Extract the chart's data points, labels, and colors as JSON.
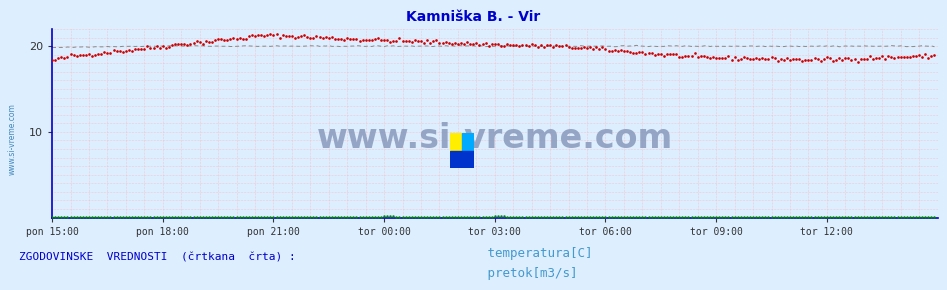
{
  "title": "Kamniška B. - Vir",
  "title_color": "#0000cc",
  "title_fontsize": 10,
  "fig_bg_color": "#ddeeff",
  "plot_bg_color": "#ddeeff",
  "ylim": [
    0,
    22
  ],
  "yticks": [
    10,
    20
  ],
  "xlim": [
    0,
    288
  ],
  "xtick_labels": [
    "pon 15:00",
    "pon 18:00",
    "pon 21:00",
    "tor 00:00",
    "tor 03:00",
    "tor 06:00",
    "tor 09:00",
    "tor 12:00"
  ],
  "xtick_positions": [
    0,
    36,
    72,
    108,
    144,
    180,
    216,
    252
  ],
  "grid_color": "#ffaaaa",
  "temp_color": "#cc0000",
  "flow_color": "#008800",
  "hist_temp_color": "#888888",
  "watermark_text": "www.si-vreme.com",
  "watermark_color": "#8899bb",
  "watermark_fontsize": 24,
  "legend_text1": " temperatura[C]",
  "legend_text2": " pretok[m3/s]",
  "legend_color": "#4499cc",
  "legend_fontsize": 9,
  "footer_text": "ZGODOVINSKE  VREDNOSTI  (črtkana  črta) :",
  "footer_color": "#0000cc",
  "footer_fontsize": 8,
  "sidebar_text": "www.si-vreme.com",
  "sidebar_color": "#4488bb",
  "axis_color": "#0000cc"
}
